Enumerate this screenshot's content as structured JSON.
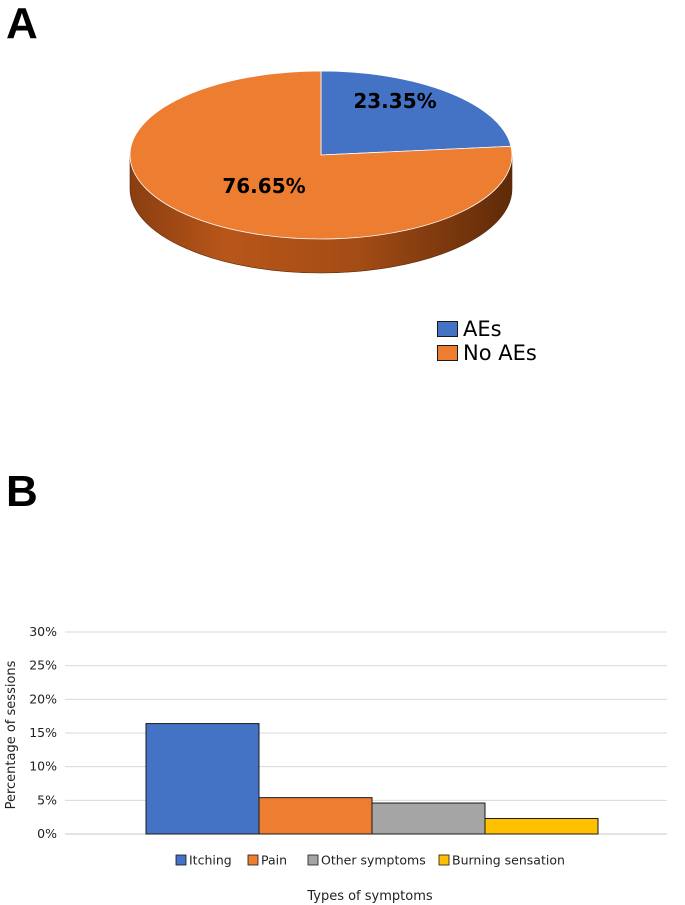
{
  "panels": {
    "a_label": "A",
    "b_label": "B"
  },
  "chart_data": [
    {
      "type": "pie",
      "title": "",
      "categories": [
        "AEs",
        "No AEs"
      ],
      "values": [
        23.35,
        76.65
      ],
      "data_labels": [
        "23.35%",
        "76.65%"
      ],
      "colors": [
        "#4472C4",
        "#ED7D31"
      ],
      "legend": {
        "placement": "bottom-right",
        "entries": [
          "AEs",
          "No AEs"
        ]
      }
    },
    {
      "type": "bar",
      "title": "",
      "categories": [
        "Itching",
        "Pain",
        "Other symptoms",
        "Burning sensation"
      ],
      "values": [
        16.4,
        5.4,
        4.6,
        2.3
      ],
      "colors": [
        "#4472C4",
        "#ED7D31",
        "#A5A5A5",
        "#FFC000"
      ],
      "xlabel": "Types of symptoms",
      "ylabel": "Percentage of sessions",
      "ylim": [
        0,
        30
      ],
      "yticks": [
        "0%",
        "5%",
        "10%",
        "15%",
        "20%",
        "25%",
        "30%"
      ],
      "grid": true,
      "legend": {
        "placement": "bottom",
        "entries": [
          "Itching",
          "Pain",
          "Other symptoms",
          "Burning sensation"
        ]
      }
    }
  ]
}
